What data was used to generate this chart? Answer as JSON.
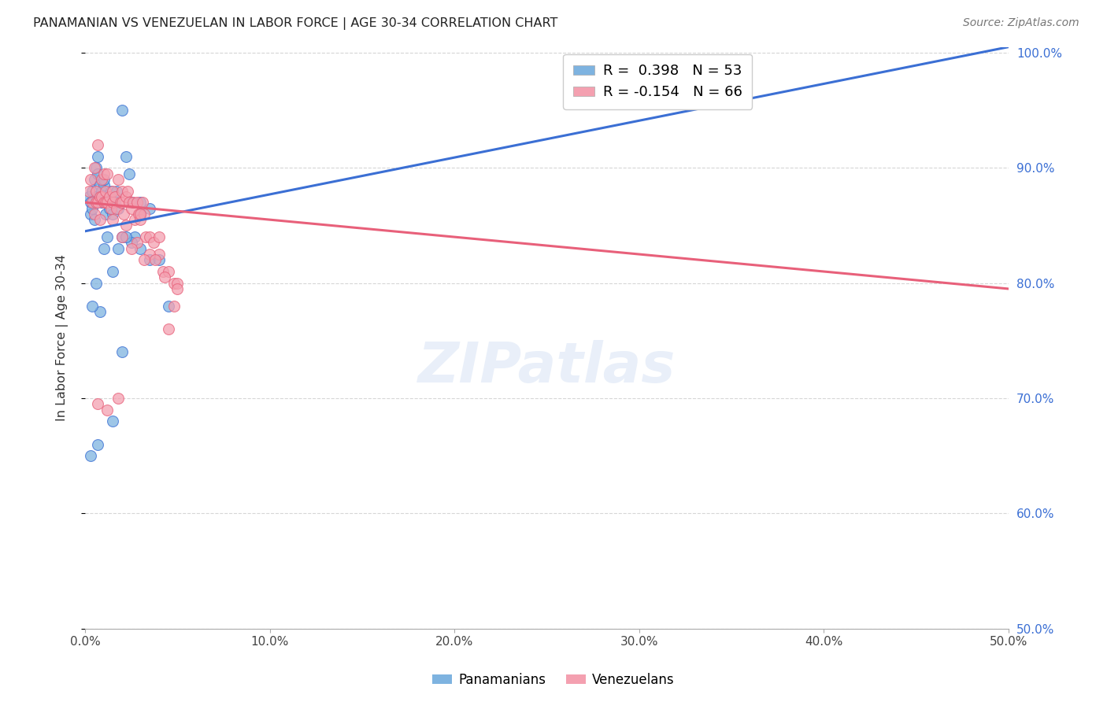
{
  "title": "PANAMANIAN VS VENEZUELAN IN LABOR FORCE | AGE 30-34 CORRELATION CHART",
  "source": "Source: ZipAtlas.com",
  "ylabel": "In Labor Force | Age 30-34",
  "xlim": [
    0.0,
    50.0
  ],
  "ylim": [
    50.0,
    100.5
  ],
  "xtick_values": [
    0.0,
    10.0,
    20.0,
    30.0,
    40.0,
    50.0
  ],
  "xtick_labels": [
    "0.0%",
    "10.0%",
    "20.0%",
    "30.0%",
    "40.0%",
    "50.0%"
  ],
  "ytick_values": [
    50.0,
    60.0,
    70.0,
    80.0,
    90.0,
    100.0
  ],
  "ytick_labels": [
    "50.0%",
    "60.0%",
    "70.0%",
    "80.0%",
    "90.0%",
    "100.0%"
  ],
  "legend_blue_label": "R =  0.398   N = 53",
  "legend_pink_label": "R = -0.154   N = 66",
  "background_color": "#ffffff",
  "grid_color": "#cccccc",
  "blue_color": "#7eb3e0",
  "pink_color": "#f4a0b0",
  "blue_line_color": "#3b6fd4",
  "pink_line_color": "#e8607a",
  "watermark": "ZIPatlas",
  "pan_x": [
    0.2,
    0.3,
    0.3,
    0.4,
    0.4,
    0.5,
    0.5,
    0.6,
    0.6,
    0.7,
    0.7,
    0.8,
    0.8,
    0.9,
    0.9,
    1.0,
    1.0,
    1.1,
    1.1,
    1.2,
    1.3,
    1.4,
    1.5,
    1.6,
    1.7,
    1.8,
    2.0,
    2.2,
    2.4,
    2.5,
    2.7,
    3.0,
    3.5,
    4.0,
    4.5,
    2.0,
    1.5,
    1.0,
    2.5,
    3.0,
    2.2,
    1.8,
    1.2,
    0.8,
    0.6,
    0.4,
    0.3,
    0.7,
    1.5,
    2.0,
    2.5,
    3.0,
    3.5
  ],
  "pan_y": [
    87.5,
    87.0,
    86.0,
    88.0,
    86.5,
    89.0,
    85.5,
    90.0,
    87.5,
    91.0,
    89.5,
    88.5,
    87.5,
    88.0,
    87.0,
    88.5,
    89.0,
    87.5,
    86.0,
    87.0,
    86.5,
    88.0,
    86.0,
    87.0,
    88.0,
    86.5,
    95.0,
    91.0,
    89.5,
    87.0,
    84.0,
    83.0,
    82.0,
    82.0,
    78.0,
    84.0,
    81.0,
    83.0,
    83.5,
    87.0,
    84.0,
    83.0,
    84.0,
    77.5,
    80.0,
    78.0,
    65.0,
    66.0,
    68.0,
    74.0,
    87.0,
    86.0,
    86.5
  ],
  "ven_x": [
    0.2,
    0.3,
    0.4,
    0.5,
    0.5,
    0.6,
    0.6,
    0.7,
    0.7,
    0.8,
    0.8,
    0.9,
    0.9,
    1.0,
    1.0,
    1.1,
    1.1,
    1.2,
    1.2,
    1.3,
    1.4,
    1.5,
    1.5,
    1.6,
    1.7,
    1.8,
    1.9,
    2.0,
    2.0,
    2.1,
    2.2,
    2.3,
    2.4,
    2.5,
    2.6,
    2.7,
    2.8,
    2.9,
    3.0,
    3.1,
    3.2,
    3.3,
    3.5,
    3.7,
    4.0,
    4.2,
    4.5,
    4.8,
    5.0,
    1.5,
    2.2,
    2.8,
    3.5,
    4.0,
    5.0,
    3.0,
    4.5,
    2.0,
    3.8,
    4.8,
    2.5,
    3.2,
    4.3,
    1.8,
    1.2,
    0.7
  ],
  "ven_y": [
    88.0,
    89.0,
    87.0,
    90.0,
    86.0,
    88.0,
    87.0,
    92.0,
    87.0,
    87.5,
    85.5,
    89.0,
    87.5,
    89.5,
    87.0,
    88.0,
    87.0,
    89.5,
    87.0,
    87.5,
    86.5,
    88.0,
    87.0,
    87.5,
    86.5,
    89.0,
    87.0,
    88.0,
    87.0,
    86.0,
    87.5,
    88.0,
    87.0,
    86.5,
    87.0,
    85.5,
    87.0,
    86.0,
    85.5,
    87.0,
    86.0,
    84.0,
    84.0,
    83.5,
    82.5,
    81.0,
    81.0,
    80.0,
    80.0,
    85.5,
    85.0,
    83.5,
    82.5,
    84.0,
    79.5,
    86.0,
    76.0,
    84.0,
    82.0,
    78.0,
    83.0,
    82.0,
    80.5,
    70.0,
    69.0,
    69.5
  ],
  "blue_trendline_x": [
    0.0,
    50.0
  ],
  "blue_trendline_y": [
    84.5,
    100.5
  ],
  "pink_trendline_x": [
    0.0,
    50.0
  ],
  "pink_trendline_y": [
    87.0,
    79.5
  ]
}
